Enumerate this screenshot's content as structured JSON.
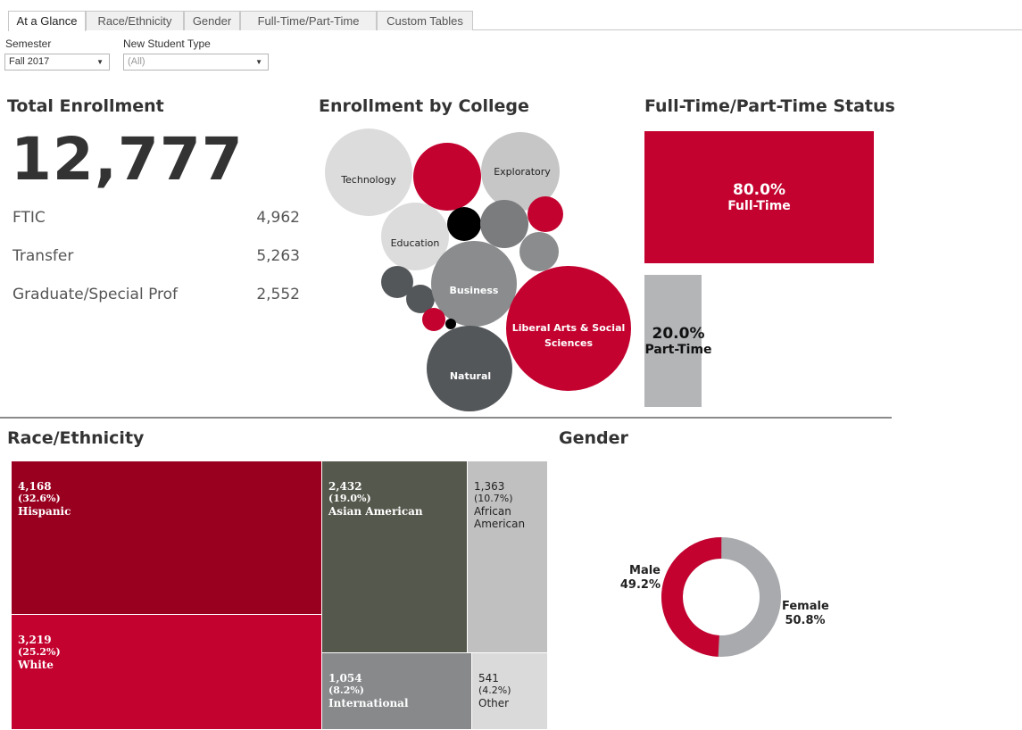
{
  "tabs": [
    "At a Glance",
    "Race/Ethnicity",
    "Gender",
    "Full-Time/Part-Time",
    "Custom Tables"
  ],
  "filters": {
    "semester_label": "Semester",
    "semester_value": "Fall 2017",
    "student_type_label": "New Student Type",
    "student_type_value": "(All)"
  },
  "total": {
    "title": "Total Enrollment",
    "value": "12,777",
    "rows": [
      {
        "label": "FTIC",
        "value": "4,962"
      },
      {
        "label": "Transfer",
        "value": "5,263"
      },
      {
        "label": "Graduate/Special Prof",
        "value": "2,552"
      }
    ]
  },
  "college": {
    "title": "Enrollment by College",
    "colors": {
      "red": "#c4022f",
      "light": "#dcdcdc",
      "mid": "#8a8c8e",
      "dark": "#54575a",
      "black": "#000000"
    },
    "labels": {
      "technology": "Technology",
      "exploratory": "Exploratory",
      "education": "Education",
      "business": "Business",
      "liberal_arts_1": "Liberal Arts & Social",
      "liberal_arts_2": "Sciences",
      "natural": "Natural"
    }
  },
  "status": {
    "title": "Full-Time/Part-Time Status",
    "full_time_pct": "80.0%",
    "full_time_label": "Full-Time",
    "part_time_pct": "20.0%",
    "part_time_label": "Part-Time",
    "full_time_fraction": 0.8,
    "part_time_fraction": 0.2
  },
  "race": {
    "title": "Race/Ethnicity",
    "items": [
      {
        "count": "4,168",
        "pct": "(32.6%)",
        "name": "Hispanic",
        "color": "#990020"
      },
      {
        "count": "3,219",
        "pct": "(25.2%)",
        "name": "White",
        "color": "#c4022f"
      },
      {
        "count": "2,432",
        "pct": "(19.0%)",
        "name": "Asian American",
        "color": "#55584c"
      },
      {
        "count": "1,363",
        "pct": "(10.7%)",
        "name": "African American",
        "color": "#c0c0c0"
      },
      {
        "count": "1,054",
        "pct": "(8.2%)",
        "name": "International",
        "color": "#87898b"
      },
      {
        "count": "541",
        "pct": "(4.2%)",
        "name": "Other",
        "color": "#dadada"
      }
    ]
  },
  "gender": {
    "title": "Gender",
    "male_label": "Male",
    "male_pct": "49.2%",
    "female_label": "Female",
    "female_pct": "50.8%",
    "male_fraction": 0.492,
    "male_color": "#c4022f",
    "female_color": "#a8aaad"
  }
}
